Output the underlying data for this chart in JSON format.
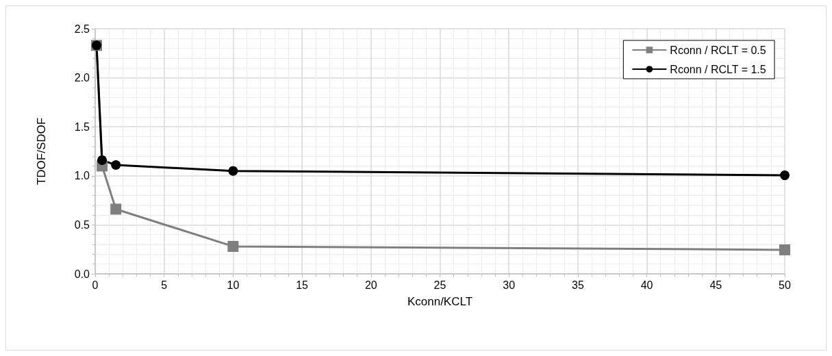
{
  "chart_data": {
    "type": "line",
    "xlabel": "Kconn/KCLT",
    "ylabel": "TDOF/SDOF",
    "x": [
      0.1,
      0.5,
      1.5,
      10,
      50
    ],
    "series": [
      {
        "name": "Rconn / RCLT = 0.5",
        "color": "#7f7f7f",
        "marker": "square",
        "values": [
          2.33,
          1.1,
          0.66,
          0.28,
          0.245
        ]
      },
      {
        "name": "Rconn / RCLT = 1.5",
        "color": "#000000",
        "marker": "circle",
        "values": [
          2.33,
          1.16,
          1.11,
          1.05,
          1.005
        ]
      }
    ],
    "xlim": [
      0,
      50
    ],
    "xticks": [
      0,
      5,
      10,
      15,
      20,
      25,
      30,
      35,
      40,
      45,
      50
    ],
    "ylim": [
      0,
      2.5
    ],
    "yticks": [
      {
        "value": 0,
        "label": "0.0"
      },
      0.5,
      {
        "value": 1,
        "label": "1.0"
      },
      1.5,
      {
        "value": 2,
        "label": "2.0"
      },
      2.5
    ],
    "grid": true,
    "legend": "top right",
    "line_style": "solid"
  }
}
